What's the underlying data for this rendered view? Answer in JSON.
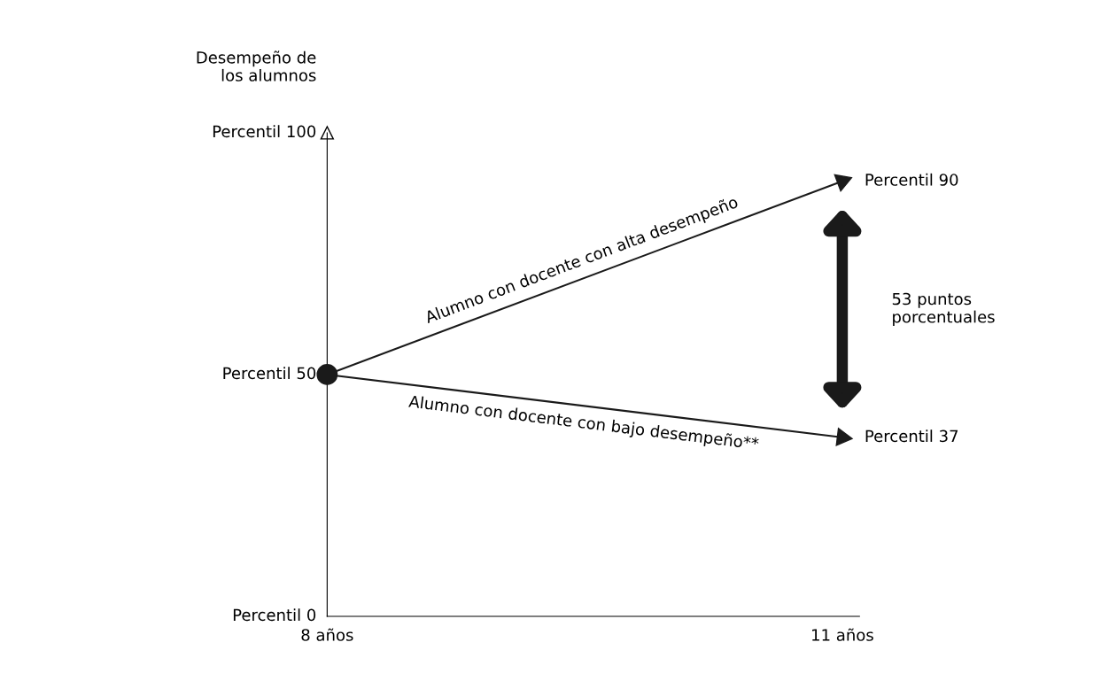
{
  "chart_data": {
    "type": "line",
    "x": [
      8,
      11
    ],
    "series": [
      {
        "name": "Alumno con docente con alta desempeño",
        "color": "#1a1a1a",
        "values": [
          50,
          90
        ],
        "value_labels": [
          null,
          "Percentil 90"
        ]
      },
      {
        "name": "Alumno con docente con bajo desempeño**",
        "color": "#1a1a1a",
        "values": [
          50,
          37
        ],
        "value_labels": [
          null,
          "Percentil 37"
        ]
      },
      {
        "type": "scatter",
        "color": "#1a1a1a",
        "x": [
          8
        ],
        "values": [
          50
        ],
        "marker": "circle"
      }
    ],
    "xlim": [
      8,
      11.1
    ],
    "ylim": [
      0,
      100
    ],
    "xticks": [
      {
        "value": 8,
        "label": "8 años"
      },
      {
        "value": 11,
        "label": "11 años"
      }
    ],
    "annotations": [
      "Desempeño de\nlos alumnos",
      "Percentil 100",
      "Percentil 50",
      "Percentil 0",
      "53 puntos\nporcentuales"
    ],
    "grid": false,
    "legend": false
  }
}
